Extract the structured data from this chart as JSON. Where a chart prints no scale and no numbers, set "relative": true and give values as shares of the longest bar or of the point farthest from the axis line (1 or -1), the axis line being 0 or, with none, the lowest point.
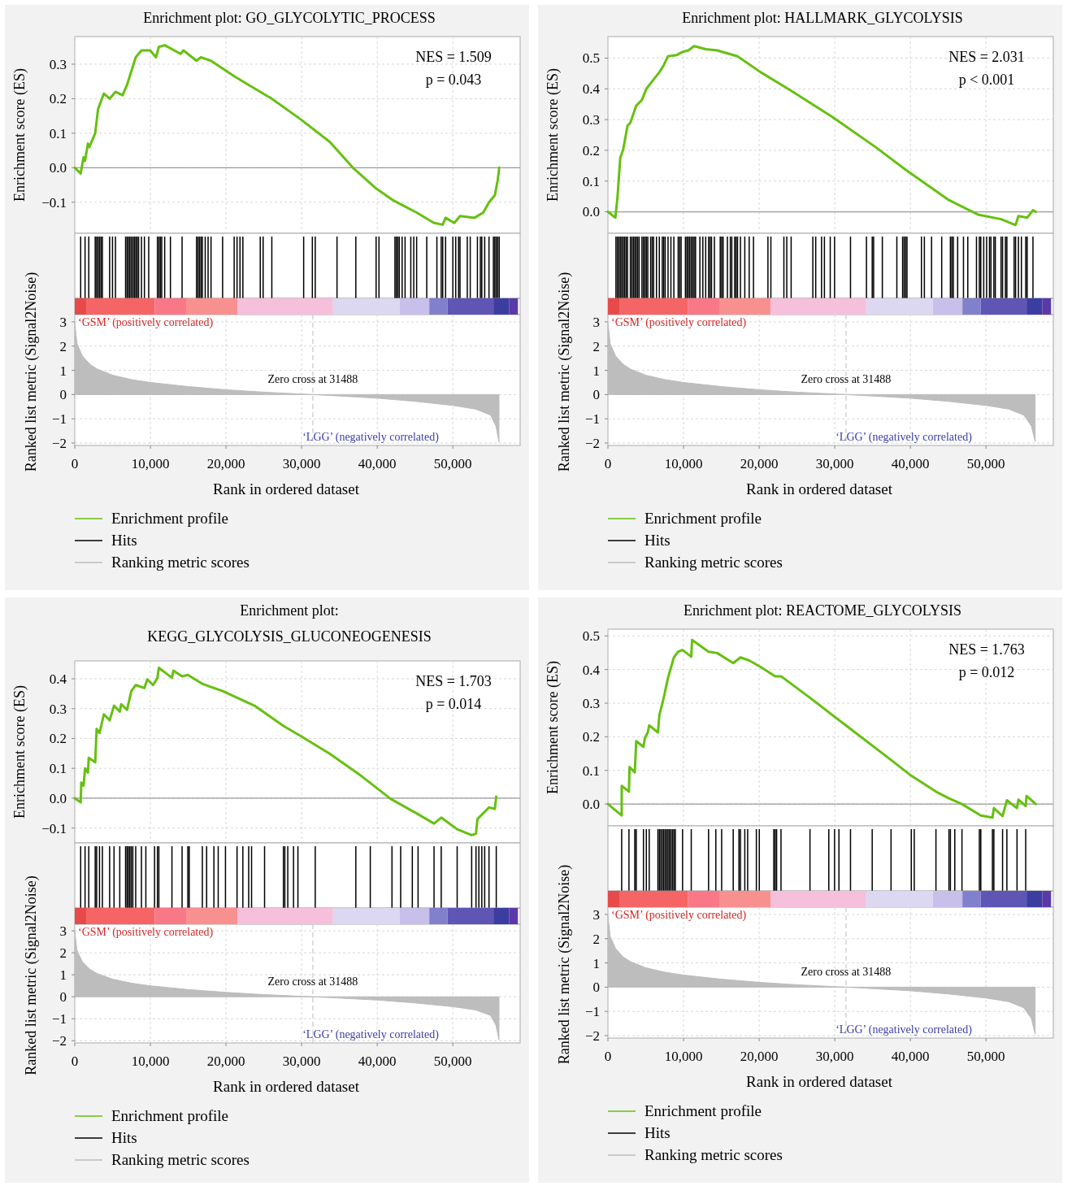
{
  "chart_data": [
    {
      "type": "line",
      "title": "Enrichment plot: GO_GLYCOLYTIC_PROCESS",
      "ylabel": "Enrichment score (ES)",
      "annotations": [
        "NES = 1.509",
        "p = 0.043"
      ],
      "xlim": [
        0,
        58900
      ],
      "ylim": [
        -0.19,
        0.38
      ],
      "xticks": [
        0,
        10000,
        20000,
        30000,
        40000,
        50000
      ],
      "yticks": [
        {
          "value": -0.1,
          "label": "−0.1"
        },
        {
          "value": 0,
          "label": "0.0"
        },
        0.1,
        0.2,
        0.3
      ],
      "tick_labels": "y",
      "grid": true,
      "legend": "bottom",
      "marker": "none",
      "line_style": "solid",
      "ref_lines": [
        {
          "axis": "y",
          "value": 0,
          "color": "#999999"
        }
      ],
      "series": [
        {
          "name": "Enrichment profile",
          "color": "#66c010",
          "x": [
            0,
            780,
            1160,
            1360,
            1740,
            1930,
            2700,
            3080,
            3850,
            4610,
            5380,
            6330,
            6910,
            8060,
            8820,
            9970,
            10740,
            11120,
            11890,
            13990,
            14370,
            16100,
            16680,
            18020,
            21080,
            23000,
            26060,
            29890,
            33720,
            36780,
            39850,
            42150,
            45210,
            47510,
            48660,
            49040,
            50190,
            50950,
            52870,
            54020,
            54790,
            55550,
            55940,
            56130
          ],
          "values": [
            0,
            -0.017,
            0.03,
            0.02,
            0.07,
            0.06,
            0.1,
            0.17,
            0.215,
            0.2,
            0.22,
            0.21,
            0.24,
            0.32,
            0.34,
            0.34,
            0.32,
            0.35,
            0.355,
            0.33,
            0.34,
            0.31,
            0.32,
            0.31,
            0.265,
            0.24,
            0.2,
            0.14,
            0.075,
            0,
            -0.06,
            -0.095,
            -0.13,
            -0.16,
            -0.165,
            -0.145,
            -0.16,
            -0.14,
            -0.145,
            -0.13,
            -0.1,
            -0.08,
            -0.035,
            0
          ]
        }
      ]
    },
    {
      "type": "bar",
      "relative": true,
      "xlim": [
        0,
        58900
      ],
      "tick_labels": false,
      "legend": "bottom",
      "series": [
        {
          "name": "Hits",
          "color": "#000000",
          "x": [
            780,
            1360,
            1850,
            2700,
            2890,
            3080,
            3270,
            3460,
            3650,
            4610,
            4990,
            5380,
            6720,
            6910,
            7100,
            7290,
            7480,
            7680,
            7870,
            8060,
            8250,
            8440,
            8820,
            9210,
            9780,
            10930,
            11120,
            11310,
            11500,
            11890,
            12650,
            14190,
            16100,
            16290,
            16480,
            16680,
            16870,
            17250,
            17630,
            18020,
            19550,
            21080,
            21460,
            21850,
            22230,
            24530,
            24910,
            26060,
            30270,
            31420,
            31800,
            34680,
            37170,
            39850,
            40230,
            42340,
            42530,
            42720,
            42910,
            43290,
            43680,
            44440,
            44830,
            45210,
            46550,
            47890,
            48460,
            48660,
            49040,
            50000,
            50380,
            50760,
            50950,
            51910,
            52300,
            53250,
            53640,
            53830,
            54210,
            54780,
            55360,
            55550,
            55740,
            55930,
            56130
          ],
          "values": [
            1,
            1,
            1,
            1,
            1,
            1,
            1,
            1,
            1,
            1,
            1,
            1,
            1,
            1,
            1,
            1,
            1,
            1,
            1,
            1,
            1,
            1,
            1,
            1,
            1,
            1,
            1,
            1,
            1,
            1,
            1,
            1,
            1,
            1,
            1,
            1,
            1,
            1,
            1,
            1,
            1,
            1,
            1,
            1,
            1,
            1,
            1,
            1,
            1,
            1,
            1,
            1,
            1,
            1,
            1,
            1,
            1,
            1,
            1,
            1,
            1,
            1,
            1,
            1,
            1,
            1,
            1,
            1,
            1,
            1,
            1,
            1,
            1,
            1,
            1,
            1,
            1,
            1,
            1,
            1,
            1,
            1,
            1,
            1,
            1
          ]
        }
      ]
    },
    {
      "type": "area",
      "xlabel": "Rank in ordered dataset",
      "ylabel": "Ranked list metric (Signal2Noise)",
      "annotations": [
        "‘GSM’ (positively correlated)",
        "‘LGG’ (negatively correlated)"
      ],
      "xlim": [
        0,
        58900
      ],
      "ylim": [
        -2.1,
        3.3
      ],
      "xticks": [
        0,
        {
          "value": 10000,
          "label": "10,000"
        },
        {
          "value": 20000,
          "label": "20,000"
        },
        {
          "value": 30000,
          "label": "30,000"
        },
        {
          "value": 40000,
          "label": "40,000"
        },
        {
          "value": 50000,
          "label": "50,000"
        }
      ],
      "yticks": [
        {
          "value": -2,
          "label": "−2"
        },
        {
          "value": -1,
          "label": "−1"
        },
        0,
        1,
        2,
        3
      ],
      "grid": true,
      "legend": "bottom",
      "ref_lines": [
        {
          "axis": "x",
          "value": 31488,
          "label": "Zero cross at 31488",
          "color": "#c8c8c8",
          "line_style": "dashed"
        }
      ],
      "series": [
        {
          "name": "Ranking metric scores",
          "color": "#bdbdbd",
          "x": [
            0,
            300,
            1000,
            2000,
            3000,
            5000,
            7500,
            10000,
            15000,
            20000,
            25000,
            31488,
            35000,
            40000,
            45000,
            50000,
            53000,
            55000,
            55700,
            56100
          ],
          "values": [
            2.95,
            2.1,
            1.6,
            1.25,
            1.05,
            0.8,
            0.62,
            0.5,
            0.33,
            0.2,
            0.1,
            0,
            -0.06,
            -0.15,
            -0.28,
            -0.45,
            -0.6,
            -0.85,
            -1.3,
            -1.95
          ]
        }
      ]
    },
    {
      "type": "line",
      "title": "Enrichment plot: HALLMARK_GLYCOLYSIS",
      "ylabel": "Enrichment score (ES)",
      "annotations": [
        "NES = 2.031",
        "p < 0.001"
      ],
      "xlim": [
        0,
        58900
      ],
      "ylim": [
        -0.07,
        0.57
      ],
      "xticks": [
        0,
        10000,
        20000,
        30000,
        40000,
        50000
      ],
      "yticks": [
        {
          "value": 0,
          "label": "0.0"
        },
        0.1,
        0.2,
        0.3,
        0.4,
        0.5
      ],
      "tick_labels": "y",
      "grid": true,
      "legend": "bottom",
      "marker": "none",
      "line_style": "solid",
      "ref_lines": [
        {
          "axis": "y",
          "value": 0,
          "color": "#999999"
        }
      ],
      "series": [
        {
          "name": "Enrichment profile",
          "color": "#66c010",
          "x": [
            0,
            980,
            1250,
            1630,
            2020,
            2590,
            2970,
            3740,
            4500,
            5080,
            6040,
            6800,
            7380,
            7950,
            9100,
            9870,
            10630,
            11400,
            12930,
            14460,
            17140,
            20210,
            24040,
            29780,
            35530,
            39360,
            45100,
            48930,
            51990,
            53910,
            54290,
            55440,
            56210,
            56590
          ],
          "values": [
            0,
            -0.019,
            0.043,
            0.175,
            0.203,
            0.28,
            0.29,
            0.345,
            0.364,
            0.4,
            0.43,
            0.454,
            0.477,
            0.506,
            0.51,
            0.52,
            0.525,
            0.539,
            0.529,
            0.525,
            0.506,
            0.454,
            0.397,
            0.307,
            0.208,
            0.137,
            0.038,
            -0.009,
            -0.024,
            -0.043,
            -0.014,
            -0.019,
            0.005,
            0
          ]
        }
      ]
    },
    {
      "type": "bar",
      "relative": true,
      "xlim": [
        0,
        58900
      ],
      "tick_labels": false,
      "legend": "bottom",
      "series": [
        {
          "name": "Hits",
          "color": "#000000",
          "x": [
            1060,
            1250,
            1440,
            1630,
            1820,
            2020,
            2210,
            2400,
            2590,
            2970,
            3160,
            3360,
            3550,
            3740,
            3930,
            4120,
            4500,
            4700,
            4890,
            5080,
            5270,
            5650,
            5850,
            6040,
            6420,
            6800,
            7190,
            7380,
            7570,
            7950,
            8330,
            8720,
            9290,
            9480,
            9680,
            10250,
            10440,
            10630,
            10820,
            11020,
            11210,
            11400,
            11590,
            12160,
            12550,
            12930,
            13310,
            13510,
            13700,
            14080,
            14850,
            15040,
            15230,
            15800,
            16190,
            16380,
            16760,
            16950,
            17140,
            17530,
            18100,
            18680,
            19250,
            21160,
            21550,
            23270,
            23650,
            24230,
            27100,
            27480,
            28250,
            28630,
            29400,
            29970,
            32080,
            34190,
            34950,
            35140,
            36290,
            38210,
            38970,
            39160,
            39360,
            39550,
            41460,
            41850,
            42800,
            44140,
            45290,
            45480,
            45680,
            46250,
            47020,
            47590,
            48740,
            49120,
            49310,
            49700,
            50080,
            50460,
            50650,
            51040,
            51230,
            51990,
            52190,
            52570,
            52760,
            53720,
            53910,
            54290,
            54680,
            55250,
            55440,
            56210
          ],
          "values": [
            1,
            1,
            1,
            1,
            1,
            1,
            1,
            1,
            1,
            1,
            1,
            1,
            1,
            1,
            1,
            1,
            1,
            1,
            1,
            1,
            1,
            1,
            1,
            1,
            1,
            1,
            1,
            1,
            1,
            1,
            1,
            1,
            1,
            1,
            1,
            1,
            1,
            1,
            1,
            1,
            1,
            1,
            1,
            1,
            1,
            1,
            1,
            1,
            1,
            1,
            1,
            1,
            1,
            1,
            1,
            1,
            1,
            1,
            1,
            1,
            1,
            1,
            1,
            1,
            1,
            1,
            1,
            1,
            1,
            1,
            1,
            1,
            1,
            1,
            1,
            1,
            1,
            1,
            1,
            1,
            1,
            1,
            1,
            1,
            1,
            1,
            1,
            1,
            1,
            1,
            1,
            1,
            1,
            1,
            1,
            1,
            1,
            1,
            1,
            1,
            1,
            1,
            1,
            1,
            1,
            1,
            1,
            1,
            1,
            1,
            1,
            1,
            1,
            1
          ]
        }
      ]
    },
    {
      "type": "area",
      "xlabel": "Rank in ordered dataset",
      "ylabel": "Ranked list metric (Signal2Noise)",
      "annotations": [
        "‘GSM’ (positively correlated)",
        "‘LGG’ (negatively correlated)"
      ],
      "xlim": [
        0,
        58900
      ],
      "ylim": [
        -2.1,
        3.3
      ],
      "xticks": [
        0,
        {
          "value": 10000,
          "label": "10,000"
        },
        {
          "value": 20000,
          "label": "20,000"
        },
        {
          "value": 30000,
          "label": "30,000"
        },
        {
          "value": 40000,
          "label": "40,000"
        },
        {
          "value": 50000,
          "label": "50,000"
        }
      ],
      "yticks": [
        {
          "value": -2,
          "label": "−2"
        },
        {
          "value": -1,
          "label": "−1"
        },
        0,
        1,
        2,
        3
      ],
      "grid": true,
      "legend": "bottom",
      "ref_lines": [
        {
          "axis": "x",
          "value": 31488,
          "label": "Zero cross at 31488",
          "color": "#c8c8c8",
          "line_style": "dashed"
        }
      ],
      "series": [
        {
          "name": "Ranking metric scores",
          "color": "#bdbdbd",
          "x": [
            0,
            300,
            1000,
            2000,
            3000,
            5000,
            7500,
            10000,
            15000,
            20000,
            25000,
            31488,
            35000,
            40000,
            45000,
            50000,
            53000,
            55000,
            56000,
            56500
          ],
          "values": [
            2.95,
            2.1,
            1.6,
            1.25,
            1.05,
            0.8,
            0.62,
            0.5,
            0.33,
            0.2,
            0.1,
            0,
            -0.06,
            -0.15,
            -0.28,
            -0.45,
            -0.6,
            -0.85,
            -1.3,
            -1.95
          ]
        }
      ]
    },
    {
      "type": "line",
      "title": "Enrichment plot:\nKEGG_GLYCOLYSIS_GLUCONEOGENESIS",
      "ylabel": "Enrichment score (ES)",
      "annotations": [
        "NES = 1.703",
        "p = 0.014"
      ],
      "xlim": [
        0,
        58900
      ],
      "ylim": [
        -0.15,
        0.46
      ],
      "xticks": [
        0,
        10000,
        20000,
        30000,
        40000,
        50000
      ],
      "yticks": [
        {
          "value": -0.1,
          "label": "−0.1"
        },
        {
          "value": 0,
          "label": "0.0"
        },
        0.1,
        0.2,
        0.3,
        0.4
      ],
      "tick_labels": "y",
      "grid": true,
      "legend": "bottom",
      "marker": "none",
      "line_style": "solid",
      "ref_lines": [
        {
          "axis": "y",
          "value": 0,
          "color": "#999999"
        }
      ],
      "series": [
        {
          "name": "Enrichment profile",
          "color": "#66c010",
          "x": [
            0,
            780,
            860,
            1160,
            1360,
            1740,
            1850,
            2700,
            2890,
            3270,
            3850,
            4610,
            5190,
            5950,
            6140,
            6910,
            7480,
            8060,
            9210,
            9590,
            10360,
            10930,
            11120,
            12850,
            13040,
            14190,
            14950,
            16870,
            19550,
            23760,
            27590,
            29890,
            33720,
            37550,
            41760,
            45210,
            47510,
            48460,
            50570,
            52490,
            53060,
            53250,
            54780,
            55550,
            55740
          ],
          "values": [
            0,
            -0.014,
            0.052,
            0.042,
            0.1,
            0.086,
            0.135,
            0.12,
            0.232,
            0.218,
            0.281,
            0.261,
            0.31,
            0.29,
            0.315,
            0.296,
            0.359,
            0.379,
            0.369,
            0.398,
            0.379,
            0.403,
            0.437,
            0.403,
            0.427,
            0.408,
            0.413,
            0.383,
            0.359,
            0.31,
            0.242,
            0.208,
            0.149,
            0.081,
            -0.002,
            -0.051,
            -0.085,
            -0.065,
            -0.104,
            -0.124,
            -0.119,
            -0.07,
            -0.031,
            -0.036,
            0.005
          ]
        }
      ]
    },
    {
      "type": "bar",
      "relative": true,
      "xlim": [
        0,
        58900
      ],
      "tick_labels": false,
      "legend": "bottom",
      "series": [
        {
          "name": "Hits",
          "color": "#000000",
          "x": [
            780,
            1360,
            1850,
            2700,
            2890,
            3270,
            3650,
            4610,
            5190,
            5950,
            6720,
            6910,
            7100,
            7290,
            7480,
            7680,
            8060,
            8820,
            9400,
            10550,
            10930,
            11120,
            12850,
            14190,
            14950,
            15140,
            16870,
            17440,
            18400,
            18970,
            19930,
            21460,
            22230,
            23000,
            23380,
            25100,
            27590,
            27780,
            28170,
            28930,
            29510,
            31800,
            37170,
            39080,
            41950,
            43100,
            44640,
            45400,
            47510,
            48460,
            50570,
            52490,
            53060,
            53440,
            53830,
            54210,
            54780,
            55740
          ],
          "values": [
            1,
            1,
            1,
            1,
            1,
            1,
            1,
            1,
            1,
            1,
            1,
            1,
            1,
            1,
            1,
            1,
            1,
            1,
            1,
            1,
            1,
            1,
            1,
            1,
            1,
            1,
            1,
            1,
            1,
            1,
            1,
            1,
            1,
            1,
            1,
            1,
            1,
            1,
            1,
            1,
            1,
            1,
            1,
            1,
            1,
            1,
            1,
            1,
            1,
            1,
            1,
            1,
            1,
            1,
            1,
            1,
            1,
            1
          ]
        }
      ]
    },
    {
      "type": "area",
      "xlabel": "Rank in ordered dataset",
      "ylabel": "Ranked list metric (Signal2Noise)",
      "annotations": [
        "‘GSM’ (positively correlated)",
        "‘LGG’ (negatively correlated)"
      ],
      "xlim": [
        0,
        58900
      ],
      "ylim": [
        -2.1,
        3.3
      ],
      "xticks": [
        0,
        {
          "value": 10000,
          "label": "10,000"
        },
        {
          "value": 20000,
          "label": "20,000"
        },
        {
          "value": 30000,
          "label": "30,000"
        },
        {
          "value": 40000,
          "label": "40,000"
        },
        {
          "value": 50000,
          "label": "50,000"
        }
      ],
      "yticks": [
        {
          "value": -2,
          "label": "−2"
        },
        {
          "value": -1,
          "label": "−1"
        },
        0,
        1,
        2,
        3
      ],
      "grid": true,
      "legend": "bottom",
      "ref_lines": [
        {
          "axis": "x",
          "value": 31488,
          "label": "Zero cross at 31488",
          "color": "#c8c8c8",
          "line_style": "dashed"
        }
      ],
      "series": [
        {
          "name": "Ranking metric scores",
          "color": "#bdbdbd",
          "x": [
            0,
            300,
            1000,
            2000,
            3000,
            5000,
            7500,
            10000,
            15000,
            20000,
            25000,
            31488,
            35000,
            40000,
            45000,
            50000,
            53000,
            55000,
            55700,
            56100
          ],
          "values": [
            2.95,
            2.1,
            1.6,
            1.25,
            1.05,
            0.8,
            0.62,
            0.5,
            0.33,
            0.2,
            0.1,
            0,
            -0.06,
            -0.15,
            -0.28,
            -0.45,
            -0.6,
            -0.85,
            -1.3,
            -1.95
          ]
        }
      ]
    },
    {
      "type": "line",
      "title": "Enrichment plot: REACTOME_GLYCOLYSIS",
      "ylabel": "Enrichment score (ES)",
      "annotations": [
        "NES = 1.763",
        "p = 0.012"
      ],
      "xlim": [
        0,
        58900
      ],
      "ylim": [
        -0.065,
        0.52
      ],
      "xticks": [
        0,
        10000,
        20000,
        30000,
        40000,
        50000
      ],
      "yticks": [
        {
          "value": 0,
          "label": "0.0"
        },
        0.1,
        0.2,
        0.3,
        0.4,
        0.5
      ],
      "tick_labels": "y",
      "grid": true,
      "legend": "bottom",
      "marker": "none",
      "line_style": "solid",
      "ref_lines": [
        {
          "axis": "y",
          "value": 0,
          "color": "#999999"
        }
      ],
      "series": [
        {
          "name": "Enrichment profile",
          "color": "#66c010",
          "x": [
            0,
            1820,
            1820,
            2780,
            2860,
            3550,
            3740,
            4700,
            4890,
            5270,
            5460,
            6610,
            6800,
            7380,
            7950,
            8720,
            9290,
            9870,
            11020,
            11130,
            13310,
            14460,
            16570,
            17530,
            18680,
            20020,
            22120,
            22890,
            26720,
            31700,
            37440,
            40120,
            43380,
            45100,
            46820,
            49310,
            50850,
            51040,
            52190,
            52760,
            54100,
            54290,
            55250,
            55360,
            56590
          ],
          "values": [
            0,
            -0.034,
            0.054,
            0.037,
            0.11,
            0.094,
            0.187,
            0.17,
            0.196,
            0.213,
            0.234,
            0.213,
            0.264,
            0.316,
            0.376,
            0.436,
            0.453,
            0.458,
            0.438,
            0.488,
            0.453,
            0.449,
            0.419,
            0.436,
            0.427,
            0.41,
            0.38,
            0.38,
            0.316,
            0.23,
            0.131,
            0.084,
            0.037,
            0.017,
            0,
            -0.034,
            -0.04,
            -0.012,
            -0.036,
            0.011,
            -0.012,
            0.013,
            -0.006,
            0.024,
            0
          ]
        }
      ]
    },
    {
      "type": "bar",
      "relative": true,
      "xlim": [
        0,
        58900
      ],
      "tick_labels": false,
      "legend": "bottom",
      "series": [
        {
          "name": "Hits",
          "color": "#000000",
          "x": [
            1820,
            2780,
            3550,
            3740,
            4700,
            5080,
            5460,
            6610,
            6800,
            6990,
            7190,
            7380,
            7570,
            7760,
            7950,
            8140,
            8330,
            8530,
            8720,
            8910,
            9870,
            11020,
            13310,
            14270,
            15040,
            16570,
            17330,
            17530,
            18100,
            18480,
            19630,
            20020,
            21930,
            22120,
            22310,
            22890,
            26720,
            29210,
            29970,
            30550,
            32080,
            34950,
            37440,
            40120,
            40510,
            43380,
            45100,
            45290,
            45870,
            46820,
            49120,
            49310,
            50850,
            51040,
            52190,
            52760,
            54100,
            55250
          ],
          "values": [
            1,
            1,
            1,
            1,
            1,
            1,
            1,
            1,
            1,
            1,
            1,
            1,
            1,
            1,
            1,
            1,
            1,
            1,
            1,
            1,
            1,
            1,
            1,
            1,
            1,
            1,
            1,
            1,
            1,
            1,
            1,
            1,
            1,
            1,
            1,
            1,
            1,
            1,
            1,
            1,
            1,
            1,
            1,
            1,
            1,
            1,
            1,
            1,
            1,
            1,
            1,
            1,
            1,
            1,
            1,
            1,
            1,
            1
          ]
        }
      ]
    },
    {
      "type": "area",
      "xlabel": "Rank in ordered dataset",
      "ylabel": "Ranked list metric (Signal2Noise)",
      "annotations": [
        "‘GSM’ (positively correlated)",
        "‘LGG’ (negatively correlated)"
      ],
      "xlim": [
        0,
        58900
      ],
      "ylim": [
        -2.1,
        3.3
      ],
      "xticks": [
        0,
        {
          "value": 10000,
          "label": "10,000"
        },
        {
          "value": 20000,
          "label": "20,000"
        },
        {
          "value": 30000,
          "label": "30,000"
        },
        {
          "value": 40000,
          "label": "40,000"
        },
        {
          "value": 50000,
          "label": "50,000"
        }
      ],
      "yticks": [
        {
          "value": -2,
          "label": "−2"
        },
        {
          "value": -1,
          "label": "−1"
        },
        0,
        1,
        2,
        3
      ],
      "grid": true,
      "legend": "bottom",
      "ref_lines": [
        {
          "axis": "x",
          "value": 31488,
          "label": "Zero cross at 31488",
          "color": "#c8c8c8",
          "line_style": "dashed"
        }
      ],
      "series": [
        {
          "name": "Ranking metric scores",
          "color": "#bdbdbd",
          "x": [
            0,
            300,
            1000,
            2000,
            3000,
            5000,
            7500,
            10000,
            15000,
            20000,
            25000,
            31488,
            35000,
            40000,
            45000,
            50000,
            53000,
            55000,
            56000,
            56500
          ],
          "values": [
            2.95,
            2.1,
            1.6,
            1.25,
            1.05,
            0.8,
            0.62,
            0.5,
            0.33,
            0.2,
            0.1,
            0,
            -0.06,
            -0.15,
            -0.28,
            -0.45,
            -0.6,
            -0.85,
            -1.3,
            -1.95
          ]
        }
      ]
    }
  ]
}
